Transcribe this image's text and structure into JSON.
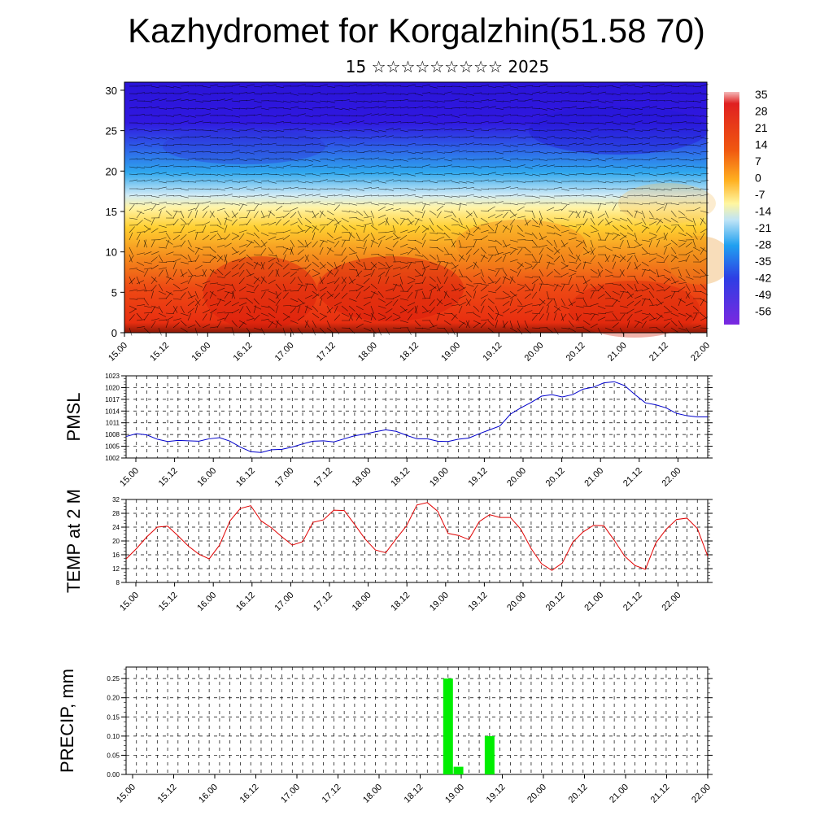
{
  "header": {
    "title": "Kazhydromet for Korgalzhin(51.58 70)",
    "subtitle": "15 ☆☆☆☆☆☆☆☆☆ 2025"
  },
  "colors": {
    "pmsl_line": "#0000cc",
    "temp_line": "#e00000",
    "precip_bar": "#00ee00",
    "grid": "#000000"
  },
  "chart_data": [
    {
      "type": "heatmap",
      "title": "",
      "xlabel": "",
      "ylabel": "",
      "x_ticks": [
        "15.00",
        "15.12",
        "16.00",
        "16.12",
        "17.00",
        "17.12",
        "18.00",
        "18.12",
        "19.00",
        "19.12",
        "20.00",
        "20.12",
        "21.00",
        "21.12",
        "22.00"
      ],
      "y_ticks": [
        "0",
        "5",
        "10",
        "15",
        "20",
        "25",
        "30"
      ],
      "ylim": [
        0,
        31
      ],
      "colorbar_labels": [
        "35",
        "28",
        "21",
        "14",
        "7",
        "0",
        "-7",
        "-14",
        "-21",
        "-28",
        "-35",
        "-42",
        "-49",
        "-56"
      ],
      "colorbar_range": [
        -60,
        38
      ],
      "overlay": "wind barbs",
      "levels_temperature": [
        {
          "level": 0,
          "value": 30
        },
        {
          "level": 5,
          "value": 26
        },
        {
          "level": 10,
          "value": 14
        },
        {
          "level": 15,
          "value": -6
        },
        {
          "level": 20,
          "value": -22
        },
        {
          "level": 25,
          "value": -46
        },
        {
          "level": 30,
          "value": -55
        }
      ]
    },
    {
      "type": "line",
      "ylabel": "PMSL",
      "ylim": [
        1002,
        1023
      ],
      "y_ticks": [
        "1002",
        "1005",
        "1008",
        "1011",
        "1014",
        "1017",
        "1020",
        "1023"
      ],
      "x_ticks": [
        "15.00",
        "15.12",
        "16.00",
        "16.12",
        "17.00",
        "17.12",
        "18.00",
        "18.12",
        "19.00",
        "19.12",
        "20.00",
        "20.12",
        "21.00",
        "21.12",
        "22.00"
      ],
      "x_range": [
        0,
        168
      ],
      "series": [
        {
          "x": [
            0,
            3,
            6,
            9,
            12,
            15,
            18,
            21,
            24,
            27,
            30,
            33,
            36,
            39,
            42,
            45,
            48,
            51,
            54,
            57,
            60,
            63,
            66,
            69,
            72,
            75,
            78,
            81,
            84,
            87,
            90,
            93,
            96,
            99,
            102,
            105,
            108,
            111,
            114,
            117,
            120,
            123,
            126,
            129,
            132,
            135,
            138,
            141,
            144,
            147,
            150,
            153,
            156,
            159,
            162,
            165,
            168
          ],
          "values": [
            1007.5,
            1008.2,
            1007.9,
            1006.8,
            1006.2,
            1006.5,
            1006.4,
            1006.3,
            1006.9,
            1007.2,
            1006.3,
            1004.8,
            1003.6,
            1003.4,
            1004.1,
            1004.2,
            1004.8,
            1005.6,
            1006.3,
            1006.4,
            1006.1,
            1006.9,
            1007.7,
            1008.1,
            1008.7,
            1009.2,
            1008.8,
            1007.8,
            1006.9,
            1006.9,
            1006.3,
            1006.2,
            1006.8,
            1007.1,
            1008.2,
            1009.2,
            1010.2,
            1013.2,
            1014.8,
            1016.2,
            1017.8,
            1018.2,
            1017.6,
            1018.2,
            1019.6,
            1020.1,
            1021.2,
            1021.5,
            1020.5,
            1018.2,
            1016.1,
            1015.6,
            1014.8,
            1013.4,
            1012.8,
            1012.5,
            1012.5
          ]
        }
      ]
    },
    {
      "type": "line",
      "ylabel": "TEMP at 2 M",
      "ylim": [
        8,
        32
      ],
      "y_ticks": [
        "8",
        "12",
        "16",
        "20",
        "24",
        "28",
        "32"
      ],
      "x_ticks": [
        "15.00",
        "15.12",
        "16.00",
        "16.12",
        "17.00",
        "17.12",
        "18.00",
        "18.12",
        "19.00",
        "19.12",
        "20.00",
        "20.12",
        "21.00",
        "21.12",
        "22.00"
      ],
      "x_range": [
        0,
        168
      ],
      "series": [
        {
          "x": [
            0,
            3,
            6,
            9,
            12,
            15,
            18,
            21,
            24,
            27,
            30,
            33,
            36,
            39,
            42,
            45,
            48,
            51,
            54,
            57,
            60,
            63,
            66,
            69,
            72,
            75,
            78,
            81,
            84,
            87,
            90,
            93,
            96,
            99,
            102,
            105,
            108,
            111,
            114,
            117,
            120,
            123,
            126,
            129,
            132,
            135,
            138,
            141,
            144,
            147,
            150,
            153,
            156,
            159,
            162,
            165,
            168
          ],
          "values": [
            14.8,
            17.8,
            21.2,
            24.0,
            24.3,
            21.5,
            18.5,
            16.2,
            14.8,
            18.8,
            25.8,
            29.4,
            30.2,
            25.8,
            23.8,
            21.2,
            18.8,
            19.8,
            25.4,
            26.1,
            28.9,
            28.8,
            24.8,
            20.6,
            17.4,
            16.6,
            20.6,
            24.4,
            30.4,
            31.1,
            28.6,
            22.2,
            21.6,
            20.4,
            25.6,
            27.6,
            26.8,
            26.8,
            23.4,
            17.8,
            13.4,
            11.5,
            13.6,
            19.6,
            22.6,
            24.5,
            24.4,
            20.2,
            15.6,
            12.9,
            11.8,
            19.4,
            23.4,
            26.2,
            26.6,
            23.6,
            15.6
          ]
        }
      ]
    },
    {
      "type": "bar",
      "ylabel": "PRECIP, mm",
      "ylim": [
        0,
        0.28
      ],
      "y_ticks": [
        "0.00",
        "0.05",
        "0.10",
        "0.15",
        "0.20",
        "0.25"
      ],
      "x_ticks": [
        "15.00",
        "15.12",
        "16.00",
        "16.12",
        "17.00",
        "17.12",
        "18.00",
        "18.12",
        "19.00",
        "19.12",
        "20.00",
        "20.12",
        "21.00",
        "21.12",
        "22.00"
      ],
      "x_range": [
        0,
        168
      ],
      "bars": [
        {
          "x": 93,
          "value": 0.25
        },
        {
          "x": 96,
          "value": 0.02
        },
        {
          "x": 105,
          "value": 0.1
        }
      ]
    }
  ]
}
